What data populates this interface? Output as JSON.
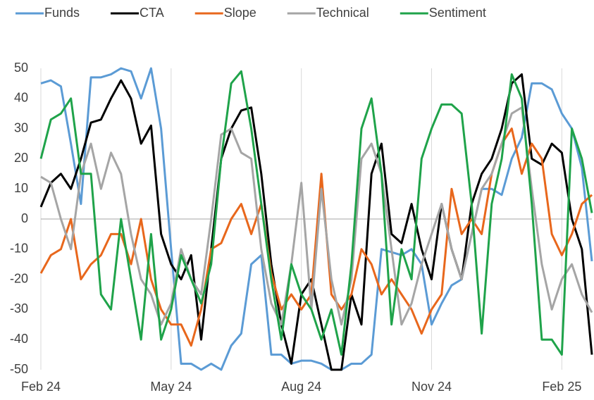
{
  "chart_data": {
    "type": "line",
    "categories": [
      "Feb 24",
      null,
      null,
      null,
      null,
      null,
      null,
      null,
      null,
      null,
      null,
      null,
      null,
      "May 24",
      null,
      null,
      null,
      null,
      null,
      null,
      null,
      null,
      null,
      null,
      null,
      null,
      "Aug 24",
      null,
      null,
      null,
      null,
      null,
      null,
      null,
      null,
      null,
      null,
      null,
      null,
      "Nov 24",
      null,
      null,
      null,
      null,
      null,
      null,
      null,
      null,
      null,
      null,
      null,
      null,
      "Feb 25",
      null,
      null,
      null
    ],
    "ylim": [
      -50,
      50
    ],
    "yticks": [
      -50,
      -40,
      -30,
      -20,
      -10,
      0,
      10,
      20,
      30,
      40,
      50
    ],
    "legend": "top",
    "series": [
      {
        "name": "Funds",
        "color": "#5b9bd5",
        "values": [
          45,
          46,
          44,
          25,
          5,
          47,
          47,
          48,
          50,
          49,
          40,
          50,
          30,
          -10,
          -48,
          -48,
          -50,
          -48,
          -50,
          -42,
          -38,
          -15,
          -12,
          -45,
          -45,
          -48,
          -47,
          -47,
          -48,
          -50,
          -50,
          -48,
          -48,
          -45,
          -10,
          -11,
          -12,
          -10,
          -15,
          -35,
          -28,
          -22,
          -20,
          -5,
          10,
          10,
          8,
          20,
          27,
          45,
          45,
          43,
          35,
          30,
          17,
          -14
        ]
      },
      {
        "name": "CTA",
        "color": "#000000",
        "values": [
          4,
          12,
          15,
          10,
          20,
          32,
          33,
          40,
          46,
          40,
          25,
          31,
          -5,
          -15,
          -20,
          -12,
          -40,
          -10,
          20,
          30,
          36,
          37,
          15,
          -15,
          -35,
          -48,
          -25,
          -20,
          -35,
          -50,
          -50,
          -25,
          -35,
          15,
          25,
          -5,
          -8,
          5,
          -10,
          -20,
          5,
          -10,
          -20,
          5,
          15,
          20,
          30,
          45,
          48,
          20,
          18,
          25,
          22,
          0,
          -10,
          -45
        ]
      },
      {
        "name": "Slope",
        "color": "#e8671c",
        "values": [
          -18,
          -12,
          -10,
          0,
          -20,
          -15,
          -12,
          -5,
          -5,
          -15,
          0,
          -20,
          -30,
          -35,
          -35,
          -42,
          -30,
          -10,
          -8,
          0,
          5,
          -5,
          5,
          -18,
          -30,
          -25,
          -30,
          -25,
          15,
          -25,
          -30,
          -25,
          -10,
          -15,
          -25,
          -20,
          -25,
          -30,
          -38,
          -30,
          -25,
          10,
          -5,
          0,
          -5,
          15,
          25,
          30,
          15,
          25,
          20,
          -5,
          -12,
          -5,
          5,
          8
        ]
      },
      {
        "name": "Technical",
        "color": "#a5a5a5",
        "values": [
          14,
          12,
          0,
          -10,
          15,
          25,
          10,
          22,
          15,
          -5,
          -20,
          -25,
          -35,
          -28,
          -10,
          -20,
          -25,
          0,
          28,
          30,
          22,
          20,
          -10,
          -28,
          -35,
          -15,
          12,
          -30,
          10,
          -20,
          -35,
          -20,
          20,
          25,
          15,
          -10,
          -35,
          -28,
          -15,
          -5,
          5,
          -10,
          -20,
          -5,
          10,
          15,
          25,
          35,
          37,
          10,
          -15,
          -30,
          -20,
          -15,
          -25,
          -31
        ]
      },
      {
        "name": "Sentiment",
        "color": "#1fa34a",
        "values": [
          20,
          33,
          35,
          40,
          15,
          15,
          -25,
          -30,
          0,
          -20,
          -40,
          -5,
          -40,
          -30,
          -12,
          -20,
          -28,
          -15,
          20,
          45,
          49,
          30,
          5,
          -20,
          -40,
          -15,
          -25,
          -30,
          -40,
          -30,
          -45,
          -15,
          30,
          40,
          15,
          -35,
          -10,
          -20,
          20,
          30,
          38,
          38,
          35,
          5,
          -38,
          5,
          20,
          48,
          40,
          5,
          -40,
          -40,
          -45,
          30,
          20,
          2
        ]
      }
    ]
  }
}
